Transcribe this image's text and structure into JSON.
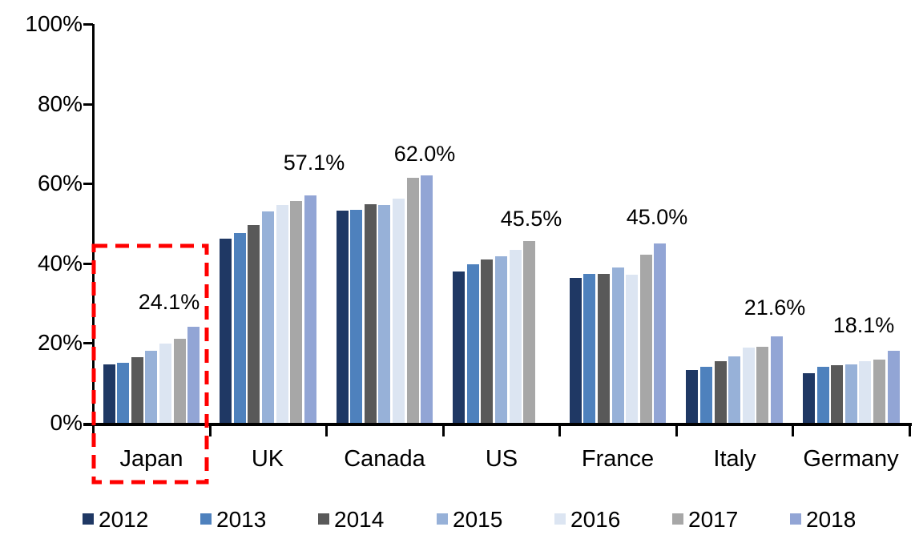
{
  "chart_data": {
    "type": "bar",
    "title": "",
    "xlabel": "",
    "ylabel": "",
    "ylim": [
      0,
      100
    ],
    "grid": false,
    "legend_position": "bottom",
    "categories": [
      "Japan",
      "UK",
      "Canada",
      "US",
      "France",
      "Italy",
      "Germany"
    ],
    "y_ticks": [
      "0%",
      "20%",
      "40%",
      "60%",
      "80%",
      "100%"
    ],
    "series": [
      {
        "name": "2012",
        "color": "#1F3864",
        "values": [
          14.6,
          46.2,
          53.2,
          38.0,
          36.4,
          13.2,
          12.4
        ]
      },
      {
        "name": "2013",
        "color": "#4E81BD",
        "values": [
          15.0,
          47.6,
          53.4,
          39.8,
          37.4,
          14.0,
          14.0
        ]
      },
      {
        "name": "2014",
        "color": "#595959",
        "values": [
          16.4,
          49.6,
          54.8,
          41.0,
          37.4,
          15.4,
          14.4
        ]
      },
      {
        "name": "2015",
        "color": "#97B1D8",
        "values": [
          18.0,
          53.0,
          54.6,
          41.8,
          39.0,
          16.6,
          14.6
        ]
      },
      {
        "name": "2016",
        "color": "#DCE5F2",
        "values": [
          19.8,
          54.6,
          56.2,
          43.4,
          37.2,
          18.8,
          15.4
        ]
      },
      {
        "name": "2017",
        "color": "#A7A7A7",
        "values": [
          21.0,
          55.6,
          61.4,
          45.5,
          42.2,
          19.0,
          15.8
        ]
      },
      {
        "name": "2018",
        "color": "#92A5D5",
        "values": [
          24.1,
          57.1,
          62.0,
          null,
          45.0,
          21.6,
          18.1
        ]
      }
    ],
    "data_labels": [
      {
        "category": "Japan",
        "series": "2018",
        "text": "24.1%"
      },
      {
        "category": "UK",
        "series": "2018",
        "text": "57.1%"
      },
      {
        "category": "Canada",
        "series": "2018",
        "text": "62.0%"
      },
      {
        "category": "US",
        "series": "2017",
        "text": "45.5%"
      },
      {
        "category": "France",
        "series": "2018",
        "text": "45.0%"
      },
      {
        "category": "Italy",
        "series": "2018",
        "text": "21.6%"
      },
      {
        "category": "Germany",
        "series": "2018",
        "text": "18.1%"
      }
    ],
    "annotation": {
      "type": "dashed-rectangle",
      "target": "Japan",
      "color": "#FF0000"
    }
  }
}
